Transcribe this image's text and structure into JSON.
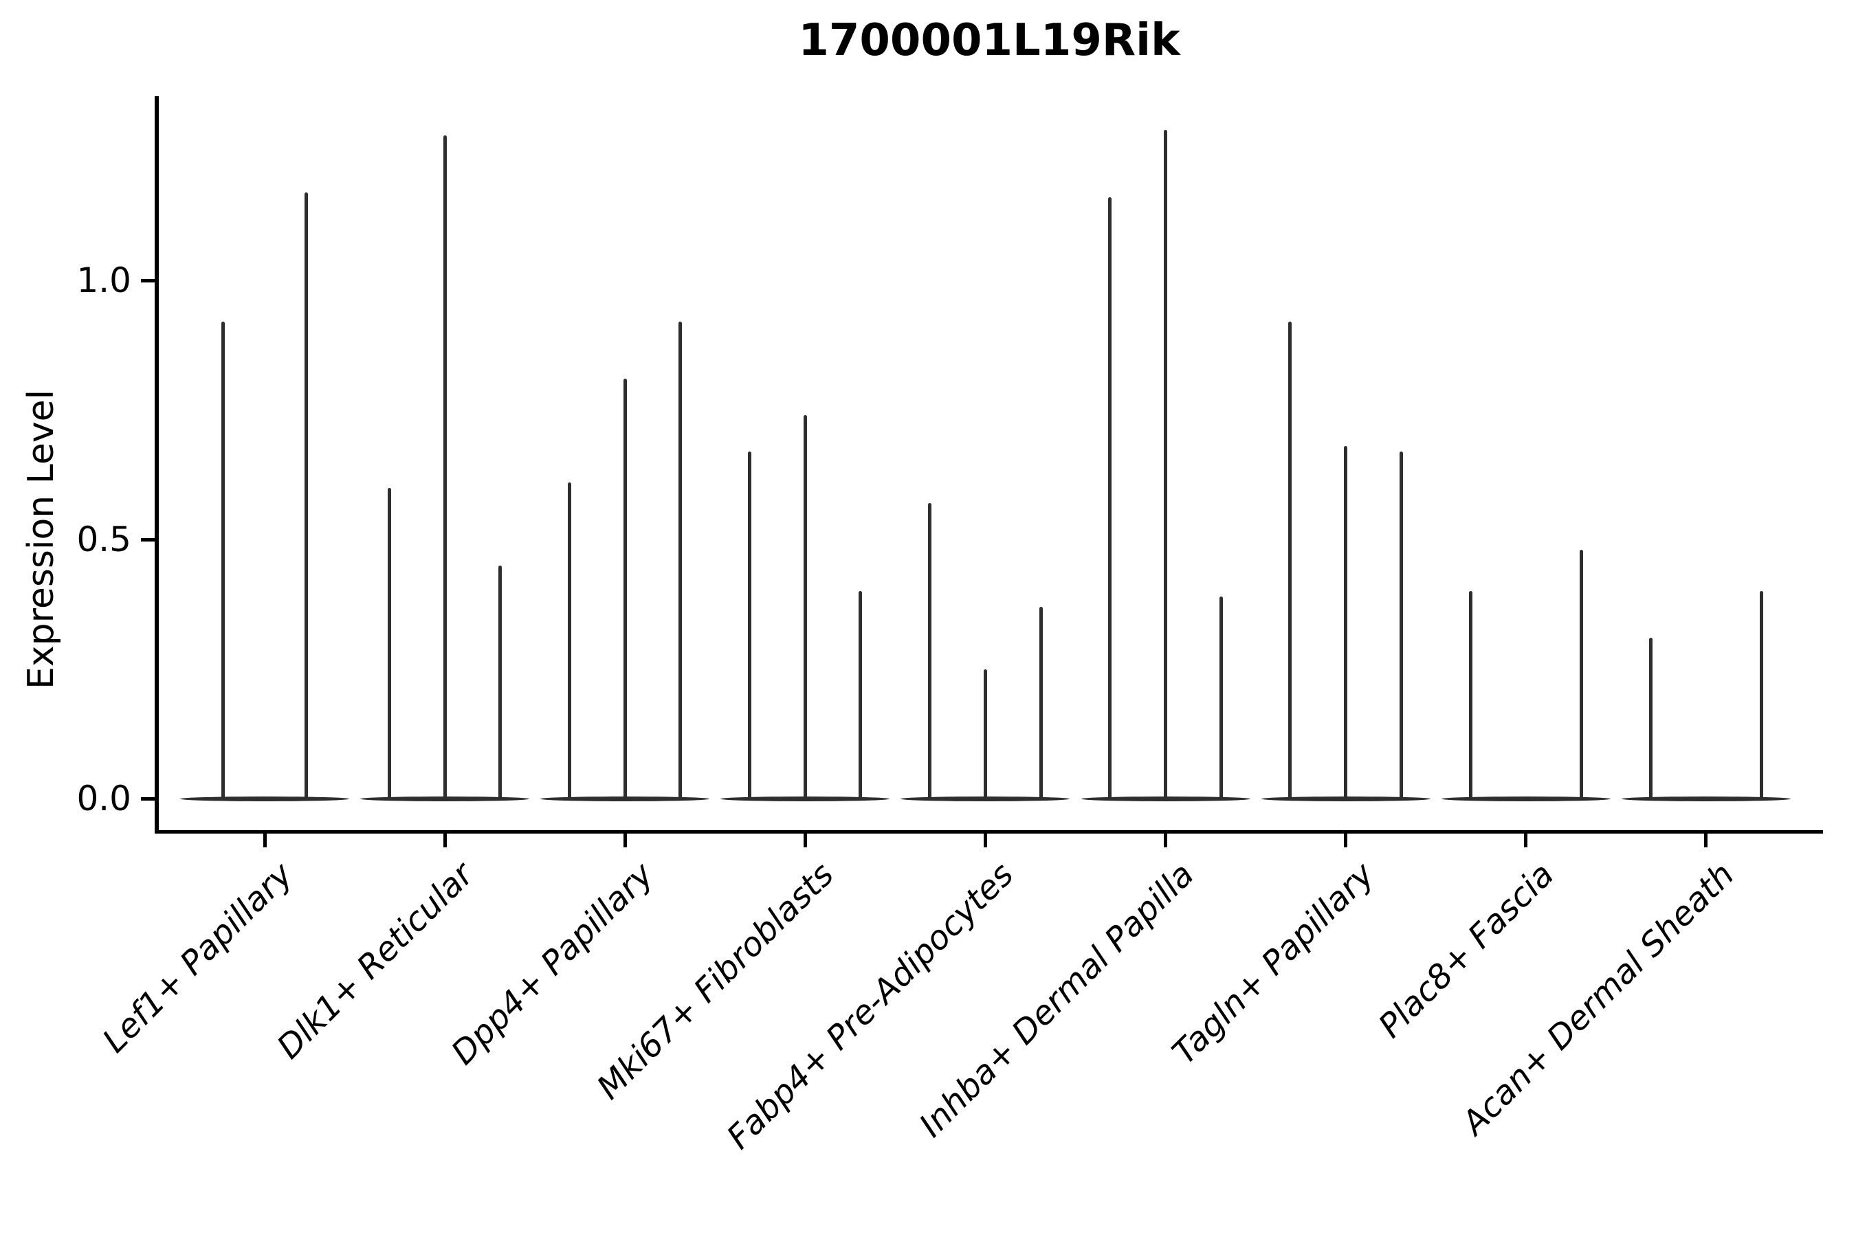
{
  "title": "1700001L19Rik",
  "colors": {
    "background": "#ffffff",
    "axis": "#000000",
    "text": "#000000",
    "violin": "#2e2e2e"
  },
  "chart_data": {
    "type": "violin",
    "title": "1700001L19Rik",
    "xlabel": "",
    "ylabel": "Expression Level",
    "yticks": [
      "0.0",
      "0.5",
      "1.0"
    ],
    "ytick_values": [
      0.0,
      0.5,
      1.0
    ],
    "ylim": [
      -0.06,
      1.36
    ],
    "grid": false,
    "legend": "none",
    "categories": [
      "Lef1+ Papillary",
      "Dlk1+ Reticular",
      "Dpp4+ Papillary",
      "Mki67+ Fibroblasts",
      "Fabp4+ Pre-Adipocytes",
      "Inhba+ Dermal Papilla",
      "Tagln+ Papillary",
      "Plac8+ Fascia",
      "Acan+ Dermal Sheath"
    ],
    "groups": [
      {
        "category": "Lef1+ Papillary",
        "violin_max_values": [
          0.92,
          1.17
        ]
      },
      {
        "category": "Dlk1+ Reticular",
        "violin_max_values": [
          0.6,
          1.28,
          0.45
        ]
      },
      {
        "category": "Dpp4+ Papillary",
        "violin_max_values": [
          0.61,
          0.81,
          0.92
        ]
      },
      {
        "category": "Mki67+ Fibroblasts",
        "violin_max_values": [
          0.67,
          0.74,
          0.4
        ]
      },
      {
        "category": "Fabp4+ Pre-Adipocytes",
        "violin_max_values": [
          0.57,
          0.25,
          0.37
        ]
      },
      {
        "category": "Inhba+ Dermal Papilla",
        "violin_max_values": [
          1.16,
          1.29,
          0.39
        ]
      },
      {
        "category": "Tagln+ Papillary",
        "violin_max_values": [
          0.92,
          0.68,
          0.67
        ]
      },
      {
        "category": "Plac8+ Fascia",
        "violin_max_values": [
          0.4,
          0,
          0.48
        ]
      },
      {
        "category": "Acan+ Dermal Sheath",
        "violin_max_values": [
          0.31,
          0,
          0.4
        ]
      }
    ],
    "description": "Violin plot of single-cell expression; each category shows 2-3 very thin violins (most cells at 0, flat base lens at y=0 with a narrow spike up to the max expression)."
  }
}
